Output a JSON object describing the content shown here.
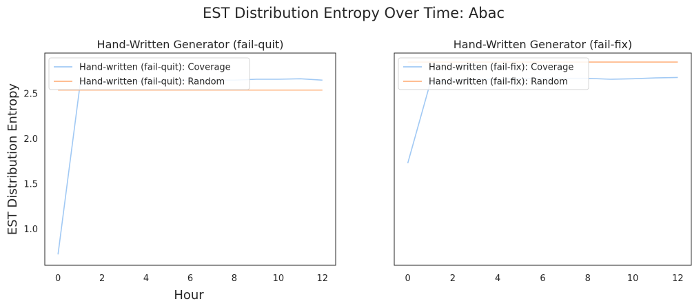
{
  "figure": {
    "suptitle": "EST Distribution Entropy Over Time: Abac",
    "ylabel": "EST Distribution Entropy",
    "xlabel": "Hour",
    "colors": {
      "coverage": "#a1c9f4",
      "random": "#ffb482"
    }
  },
  "chart_data": [
    {
      "type": "line",
      "title": "Hand-Written Generator (fail-quit)",
      "xlabel": "Hour",
      "ylabel": "EST Distribution Entropy",
      "xlim": [
        -0.6,
        12.6
      ],
      "ylim": [
        0.6,
        2.95
      ],
      "xticks": [
        0,
        2,
        4,
        6,
        8,
        10,
        12
      ],
      "xtick_labels": [
        "0",
        "2",
        "4",
        "6",
        "8",
        "10",
        "12"
      ],
      "yticks": [
        1.0,
        1.5,
        2.0,
        2.5
      ],
      "ytick_labels": [
        "1.0",
        "1.5",
        "2.0",
        "2.5"
      ],
      "grid": false,
      "legend_position": "upper-left",
      "series": [
        {
          "name": "Hand-written (fail-quit): Coverage",
          "color": "#a1c9f4",
          "x": [
            0,
            1,
            2,
            3,
            4,
            5,
            6,
            7,
            8,
            9,
            10,
            11,
            12
          ],
          "y": [
            0.72,
            2.6,
            2.62,
            2.63,
            2.64,
            2.64,
            2.65,
            2.65,
            2.65,
            2.66,
            2.66,
            2.665,
            2.65
          ]
        },
        {
          "name": "Hand-written (fail-quit): Random",
          "color": "#ffb482",
          "x": [
            0,
            1,
            2,
            3,
            4,
            5,
            6,
            7,
            8,
            9,
            10,
            11,
            12
          ],
          "y": [
            2.54,
            2.54,
            2.54,
            2.54,
            2.54,
            2.54,
            2.54,
            2.54,
            2.54,
            2.54,
            2.54,
            2.54,
            2.54
          ]
        }
      ]
    },
    {
      "type": "line",
      "title": "Hand-Written Generator (fail-fix)",
      "xlabel": "",
      "ylabel": "",
      "xlim": [
        -0.6,
        12.6
      ],
      "ylim": [
        0.6,
        2.95
      ],
      "xticks": [
        0,
        2,
        4,
        6,
        8,
        10,
        12
      ],
      "xtick_labels": [
        "0",
        "2",
        "4",
        "6",
        "8",
        "10",
        "12"
      ],
      "yticks": [],
      "ytick_labels": [],
      "grid": false,
      "legend_position": "upper-left",
      "series": [
        {
          "name": "Hand-written (fail-fix): Coverage",
          "color": "#a1c9f4",
          "x": [
            0,
            1,
            2,
            3,
            4,
            5,
            6,
            7,
            8,
            9,
            10,
            11,
            12
          ],
          "y": [
            1.73,
            2.62,
            2.65,
            2.66,
            2.66,
            2.67,
            2.67,
            2.67,
            2.67,
            2.66,
            2.665,
            2.675,
            2.68
          ]
        },
        {
          "name": "Hand-written (fail-fix): Random",
          "color": "#ffb482",
          "x": [
            0,
            1,
            2,
            3,
            4,
            5,
            6,
            7,
            8,
            9,
            10,
            11,
            12
          ],
          "y": [
            2.85,
            2.85,
            2.85,
            2.85,
            2.85,
            2.85,
            2.85,
            2.85,
            2.85,
            2.85,
            2.85,
            2.85,
            2.85
          ]
        }
      ]
    }
  ]
}
